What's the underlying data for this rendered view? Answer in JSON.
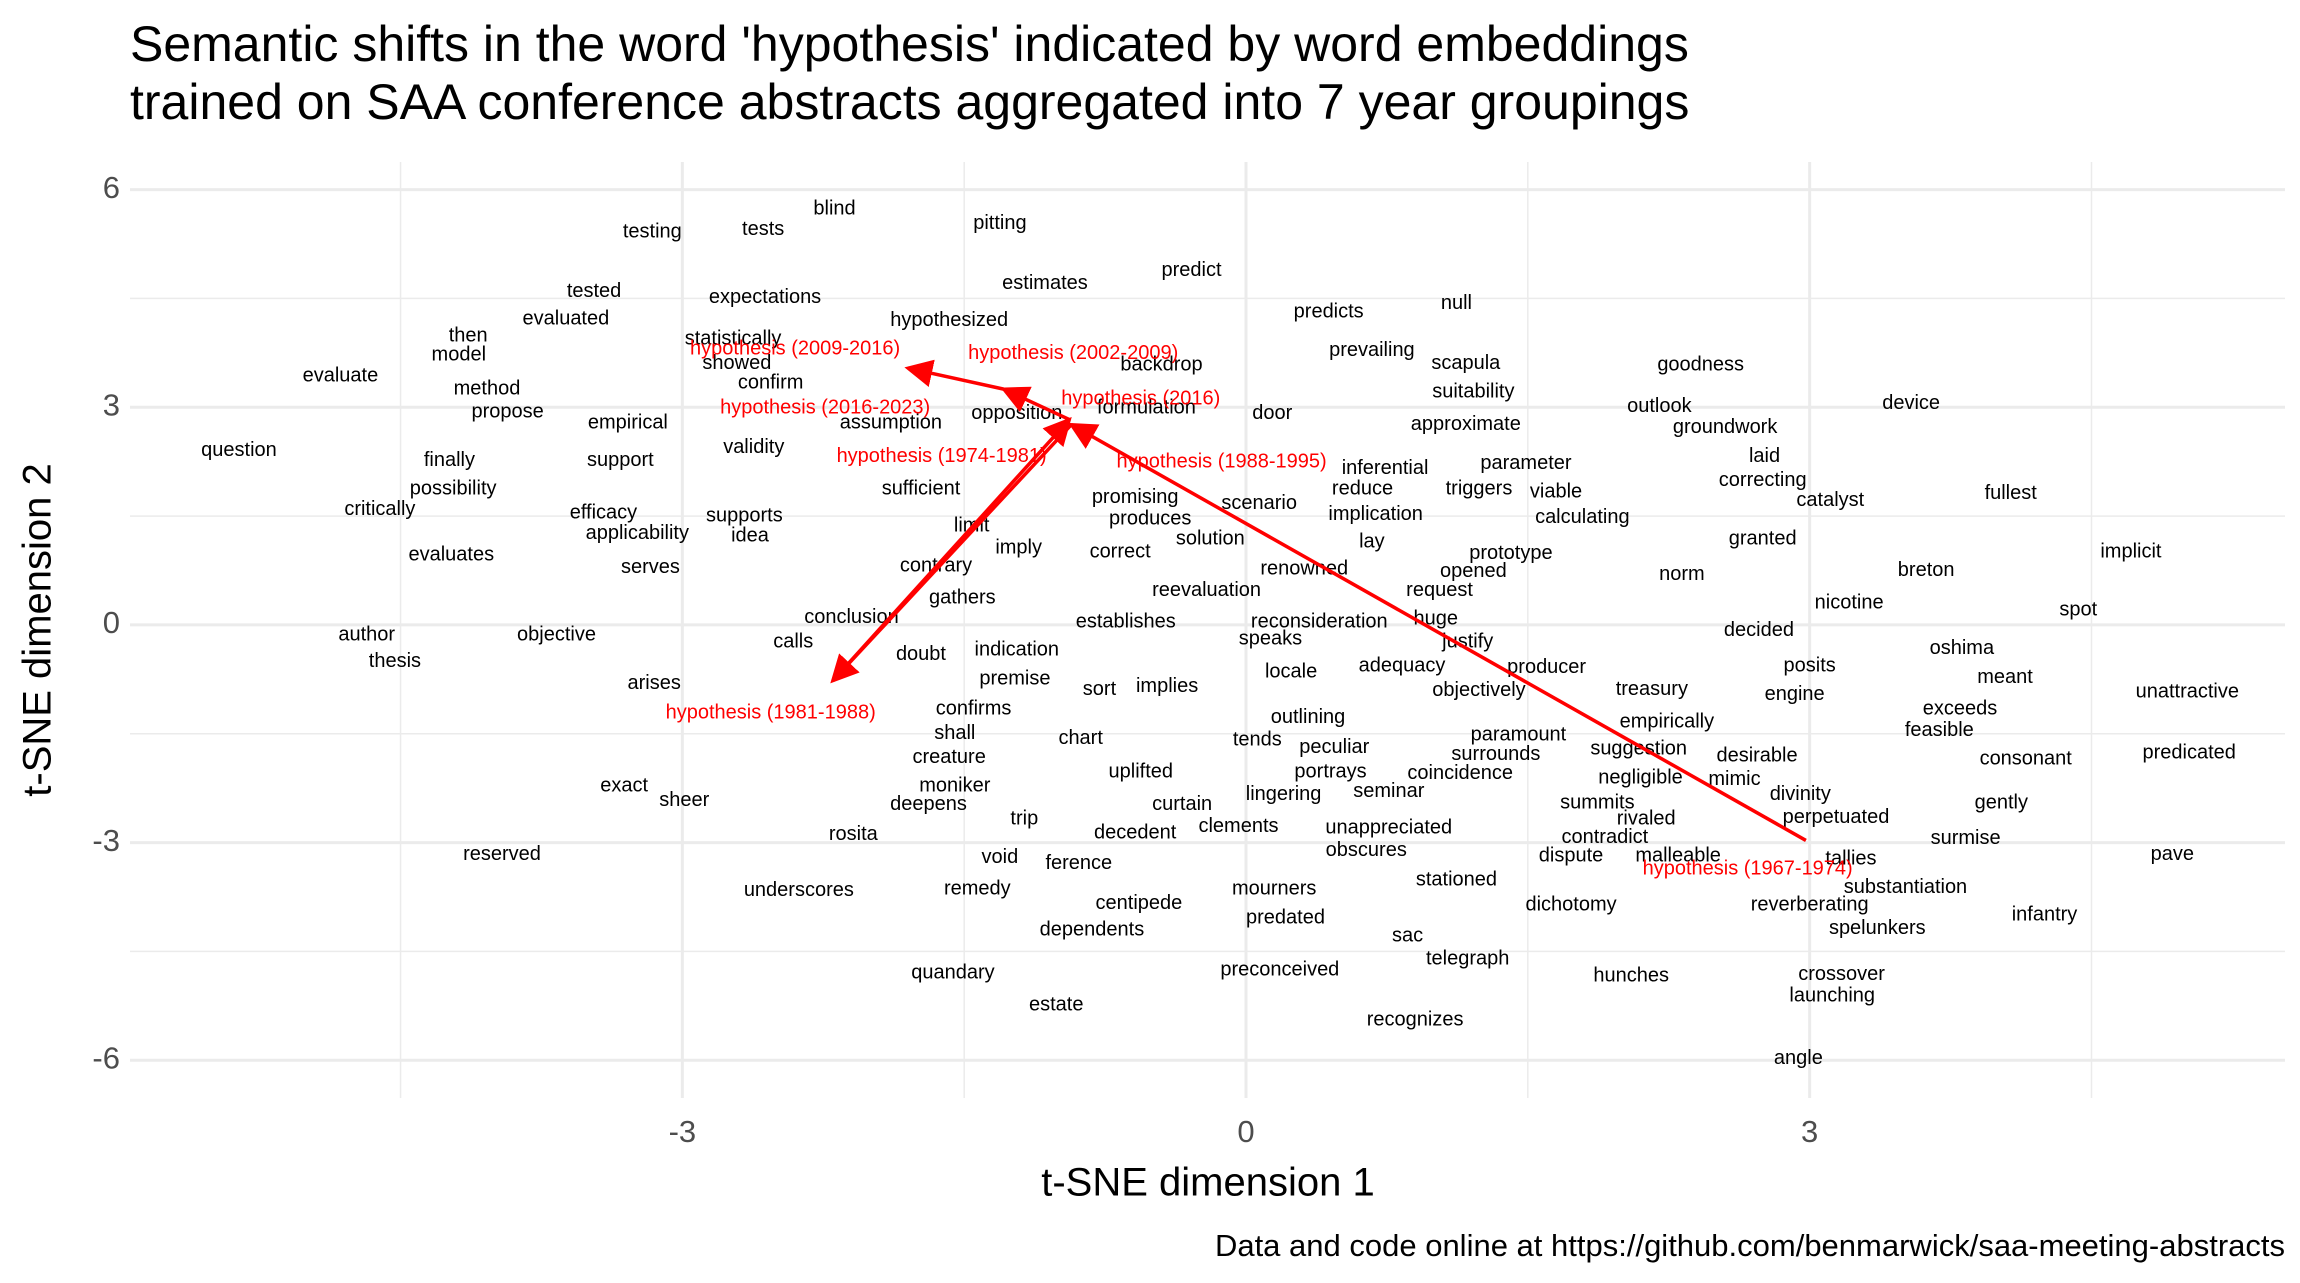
{
  "chart_data": {
    "type": "scatter",
    "title": [
      "Semantic shifts in the word 'hypothesis' indicated by word embeddings",
      "trained on SAA conference abstracts aggregated into 7 year groupings"
    ],
    "x_label": "t-SNE dimension 1",
    "y_label": "t-SNE dimension 2",
    "caption": "Data and code online at https://github.com/benmarwick/saa-meeting-abstracts",
    "xlim": [
      -5.94,
      5.53
    ],
    "ylim": [
      -6.52,
      6.38
    ],
    "xticks": [
      -3,
      0,
      3
    ],
    "yticks": [
      -6,
      -3,
      0,
      3,
      6
    ],
    "x_minor_grid": [
      -4.5,
      -1.5,
      1.5,
      4.5
    ],
    "y_minor_grid": [
      -4.5,
      -1.5,
      1.5,
      4.5
    ],
    "grid": true,
    "series": [
      {
        "color": "#000000",
        "labels": [
          "testing",
          "tests",
          "blind",
          "pitting",
          "predict",
          "estimates",
          "expectations",
          "tested",
          "evaluated",
          "hypothesized",
          "predicts",
          "null",
          "then",
          "model",
          "statistically",
          "showed",
          "prevailing",
          "scapula",
          "goodness",
          "evaluate",
          "backdrop",
          "method",
          "confirm",
          "suitability",
          "device",
          "propose",
          "outlook",
          "formulation",
          "door",
          "empirical",
          "assumption",
          "opposition",
          "approximate",
          "groundwork",
          "question",
          "validity",
          "finally",
          "support",
          "laid",
          "parameter",
          "inferential",
          "fullest",
          "possibility",
          "sufficient",
          "correcting",
          "reduce",
          "triggers",
          "viable",
          "catalyst",
          "critically",
          "efficacy",
          "promising",
          "scenario",
          "supports",
          "produces",
          "implication",
          "calculating",
          "applicability",
          "idea",
          "limit",
          "solution",
          "granted",
          "lay",
          "evaluates",
          "imply",
          "correct",
          "prototype",
          "implicit",
          "contrary",
          "serves",
          "renowned",
          "opened",
          "breton",
          "norm",
          "reevaluation",
          "request",
          "gathers",
          "nicotine",
          "spot",
          "conclusion",
          "establishes",
          "reconsideration",
          "huge",
          "decided",
          "author",
          "objective",
          "calls",
          "speaks",
          "justify",
          "oshima",
          "indication",
          "doubt",
          "thesis",
          "adequacy",
          "producer",
          "posits",
          "locale",
          "meant",
          "premise",
          "arises",
          "sort",
          "implies",
          "treasury",
          "objectively",
          "engine",
          "unattractive",
          "confirms",
          "exceeds",
          "outlining",
          "empirically",
          "shall",
          "feasible",
          "chart",
          "tends",
          "paramount",
          "peculiar",
          "suggestion",
          "creature",
          "surrounds",
          "desirable",
          "predicated",
          "consonant",
          "uplifted",
          "portrays",
          "coincidence",
          "negligible",
          "mimic",
          "moniker",
          "exact",
          "seminar",
          "lingering",
          "divinity",
          "sheer",
          "deepens",
          "curtain",
          "summits",
          "gently",
          "trip",
          "rivaled",
          "perpetuated",
          "clements",
          "unappreciated",
          "decedent",
          "rosita",
          "contradict",
          "surmise",
          "obscures",
          "reserved",
          "void",
          "dispute",
          "malleable",
          "tallies",
          "pave",
          "ference",
          "stationed",
          "substantiation",
          "underscores",
          "remedy",
          "mourners",
          "centipede",
          "dichotomy",
          "reverberating",
          "infantry",
          "predated",
          "dependents",
          "spelunkers",
          "sac",
          "telegraph",
          "preconceived",
          "quandary",
          "hunches",
          "crossover",
          "launching",
          "estate",
          "recognizes",
          "angle"
        ],
        "x": [
          -3.16,
          -2.57,
          -2.19,
          -1.31,
          -0.29,
          -1.07,
          -2.56,
          -3.47,
          -3.62,
          -1.58,
          0.44,
          1.12,
          -4.14,
          -4.19,
          -2.73,
          -2.71,
          0.67,
          1.17,
          2.42,
          -4.82,
          -0.45,
          -4.04,
          -2.53,
          1.21,
          3.54,
          -3.93,
          2.2,
          -0.53,
          0.14,
          -3.29,
          -1.89,
          -1.22,
          1.17,
          2.55,
          -5.36,
          -2.62,
          -4.24,
          -3.33,
          2.76,
          1.49,
          0.74,
          4.07,
          -4.22,
          -1.73,
          2.75,
          0.62,
          1.24,
          1.65,
          3.11,
          -4.61,
          -3.42,
          -0.59,
          0.07,
          -2.67,
          -0.51,
          0.69,
          1.79,
          -3.24,
          -2.64,
          -1.46,
          -0.19,
          2.75,
          0.67,
          -4.23,
          -1.21,
          -0.67,
          1.41,
          4.71,
          -1.65,
          -3.17,
          0.31,
          1.21,
          3.62,
          2.32,
          -0.21,
          1.03,
          -1.51,
          3.21,
          4.43,
          -2.1,
          -0.64,
          0.39,
          1.01,
          2.73,
          -4.68,
          -3.67,
          -2.41,
          0.13,
          1.18,
          3.81,
          -1.22,
          -1.73,
          -4.53,
          0.83,
          1.6,
          3.0,
          0.24,
          4.04,
          -1.23,
          -3.15,
          -0.78,
          -0.42,
          2.16,
          1.24,
          2.92,
          5.01,
          -1.45,
          3.8,
          0.33,
          2.24,
          -1.55,
          3.69,
          -0.88,
          0.06,
          1.45,
          0.47,
          2.09,
          -1.58,
          1.33,
          2.72,
          5.02,
          4.15,
          -0.56,
          0.45,
          1.14,
          2.1,
          2.6,
          -1.55,
          -3.31,
          0.76,
          0.2,
          2.95,
          -2.99,
          -1.69,
          -0.34,
          1.87,
          4.02,
          -1.18,
          2.13,
          3.14,
          -0.04,
          0.76,
          -0.59,
          -2.09,
          1.91,
          3.83,
          0.64,
          -3.96,
          -1.31,
          1.73,
          2.3,
          3.22,
          4.93,
          -0.89,
          1.12,
          3.51,
          -2.38,
          -1.43,
          0.15,
          -0.57,
          1.73,
          3.0,
          4.25,
          0.21,
          -0.82,
          3.36,
          0.86,
          1.18,
          0.18,
          -1.56,
          2.05,
          3.17,
          3.12,
          -1.01,
          0.9,
          2.94
        ],
        "y": [
          5.41,
          5.45,
          5.73,
          5.53,
          4.88,
          4.7,
          4.51,
          4.59,
          4.21,
          4.19,
          4.31,
          4.43,
          3.98,
          3.72,
          3.94,
          3.6,
          3.78,
          3.6,
          3.58,
          3.43,
          3.58,
          3.25,
          3.33,
          3.21,
          3.05,
          2.93,
          3.01,
          2.99,
          2.91,
          2.78,
          2.78,
          2.91,
          2.76,
          2.72,
          2.4,
          2.44,
          2.26,
          2.26,
          2.32,
          2.22,
          2.15,
          1.81,
          1.87,
          1.87,
          1.99,
          1.87,
          1.87,
          1.83,
          1.71,
          1.59,
          1.54,
          1.75,
          1.67,
          1.5,
          1.46,
          1.52,
          1.48,
          1.26,
          1.22,
          1.36,
          1.18,
          1.18,
          1.14,
          0.96,
          1.06,
          1.0,
          0.98,
          1.0,
          0.81,
          0.79,
          0.77,
          0.73,
          0.75,
          0.69,
          0.47,
          0.47,
          0.37,
          0.3,
          0.2,
          0.1,
          0.04,
          0.04,
          0.08,
          -0.08,
          -0.14,
          -0.14,
          -0.24,
          -0.2,
          -0.24,
          -0.33,
          -0.35,
          -0.41,
          -0.51,
          -0.57,
          -0.59,
          -0.57,
          -0.65,
          -0.73,
          -0.75,
          -0.81,
          -0.89,
          -0.85,
          -0.89,
          -0.91,
          -0.96,
          -0.93,
          -1.16,
          -1.16,
          -1.28,
          -1.34,
          -1.5,
          -1.46,
          -1.57,
          -1.59,
          -1.52,
          -1.69,
          -1.71,
          -1.83,
          -1.79,
          -1.81,
          -1.77,
          -1.85,
          -2.03,
          -2.03,
          -2.05,
          -2.11,
          -2.13,
          -2.22,
          -2.22,
          -2.3,
          -2.34,
          -2.34,
          -2.42,
          -2.48,
          -2.48,
          -2.46,
          -2.46,
          -2.68,
          -2.68,
          -2.66,
          -2.78,
          -2.8,
          -2.87,
          -2.89,
          -2.93,
          -2.95,
          -3.11,
          -3.17,
          -3.21,
          -3.19,
          -3.19,
          -3.23,
          -3.17,
          -3.29,
          -3.52,
          -3.62,
          -3.66,
          -3.64,
          -3.64,
          -3.84,
          -3.86,
          -3.86,
          -4.0,
          -4.04,
          -4.21,
          -4.19,
          -4.29,
          -4.61,
          -4.76,
          -4.8,
          -4.84,
          -4.82,
          -5.12,
          -5.24,
          -5.45,
          -5.98
        ]
      },
      {
        "color": "#ff0000",
        "labels": [
          "hypothesis (2009-2016)",
          "hypothesis (2002-2009)",
          "hypothesis (2016)",
          "hypothesis (2016-2023)",
          "hypothesis (1974-1981)",
          "hypothesis (1988-1995)",
          "hypothesis (1981-1988)",
          "hypothesis (1967-1974)"
        ],
        "x": [
          -2.4,
          -0.92,
          -0.56,
          -2.24,
          -1.62,
          -0.13,
          -2.53,
          2.67
        ],
        "y": [
          3.8,
          3.74,
          3.11,
          2.99,
          2.32,
          2.24,
          -1.22,
          -3.37
        ]
      }
    ],
    "arrows": {
      "color": "#ff0000",
      "x": [
        2.98,
        -0.93,
        -2.2,
        -0.94,
        -1.29,
        -1.8
      ],
      "y": [
        -2.97,
        2.76,
        -0.77,
        2.83,
        3.25,
        3.54
      ]
    }
  }
}
